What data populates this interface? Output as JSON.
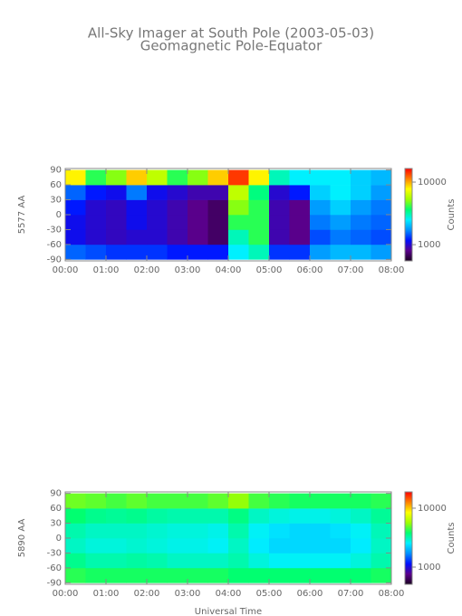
{
  "chart_data": [
    {
      "type": "heatmap",
      "title": "All-Sky Imager at South Pole (2003-05-03)",
      "subtitle": "Geomagnetic Pole-Equator",
      "ylabel": "5577 AA",
      "colorbar_label": "Counts",
      "xlim": [
        0,
        8
      ],
      "xticks": [
        {
          "value": 0,
          "label": "00:00"
        },
        {
          "value": 1,
          "label": "01:00"
        },
        {
          "value": 2,
          "label": "02:00"
        },
        {
          "value": 3,
          "label": "03:00"
        },
        {
          "value": 4,
          "label": "04:00"
        },
        {
          "value": 5,
          "label": "05:00"
        },
        {
          "value": 6,
          "label": "06:00"
        },
        {
          "value": 7,
          "label": "07:00"
        },
        {
          "value": 8,
          "label": "08:00"
        }
      ],
      "ylim": [
        -93,
        93
      ],
      "yticks": [
        90,
        60,
        30,
        0,
        -30,
        -60,
        -90
      ],
      "xbins": [
        0,
        0.5,
        1,
        1.5,
        2,
        2.5,
        3,
        3.5,
        4,
        4.5,
        5,
        5.5,
        6,
        6.5,
        7,
        7.5,
        8
      ],
      "ybins": [
        -90,
        -60,
        -30,
        0,
        30,
        60,
        90
      ],
      "values": [
        [
          1500,
          1400,
          1300,
          1300,
          1300,
          1200,
          1200,
          1200,
          2500,
          3000,
          1300,
          1300,
          1800,
          2000,
          2000,
          1800
        ],
        [
          1100,
          1000,
          950,
          1000,
          1000,
          900,
          800,
          700,
          3000,
          4000,
          900,
          800,
          1400,
          1600,
          1500,
          1400
        ],
        [
          1100,
          1000,
          950,
          1100,
          1000,
          900,
          800,
          700,
          4000,
          4000,
          900,
          800,
          1600,
          1800,
          1600,
          1500
        ],
        [
          1200,
          1000,
          950,
          1100,
          1000,
          900,
          800,
          700,
          5000,
          4000,
          900,
          800,
          1800,
          2200,
          1800,
          1600
        ],
        [
          1500,
          1200,
          1100,
          1600,
          1100,
          1000,
          900,
          900,
          6000,
          3500,
          1000,
          1200,
          2200,
          2500,
          2200,
          1800
        ],
        [
          8000,
          4000,
          5000,
          9000,
          6000,
          4000,
          5000,
          9000,
          14000,
          8000,
          3000,
          2500,
          2500,
          2500,
          2200,
          2000
        ]
      ],
      "clim": [
        550,
        16500
      ],
      "color_log": true,
      "cticks": [
        1000,
        10000
      ],
      "colormap": [
        "#1a0020",
        "#5a008c",
        "#0010ff",
        "#0090ff",
        "#00f0ff",
        "#00ff70",
        "#a0ff00",
        "#ffff00",
        "#ff8000",
        "#ff0000"
      ]
    },
    {
      "type": "heatmap",
      "ylabel": "5890 AA",
      "xlabel": "Universal Time",
      "colorbar_label": "Counts",
      "xlim": [
        0,
        8
      ],
      "xticks": [
        {
          "value": 0,
          "label": "00:00"
        },
        {
          "value": 1,
          "label": "01:00"
        },
        {
          "value": 2,
          "label": "02:00"
        },
        {
          "value": 3,
          "label": "03:00"
        },
        {
          "value": 4,
          "label": "04:00"
        },
        {
          "value": 5,
          "label": "05:00"
        },
        {
          "value": 6,
          "label": "06:00"
        },
        {
          "value": 7,
          "label": "07:00"
        },
        {
          "value": 8,
          "label": "08:00"
        }
      ],
      "ylim": [
        -93,
        93
      ],
      "yticks": [
        90,
        60,
        30,
        0,
        -30,
        -60,
        -90
      ],
      "xbins": [
        0,
        0.5,
        1,
        1.5,
        2,
        2.5,
        3,
        3.5,
        4,
        4.5,
        5,
        5.5,
        6,
        6.5,
        7,
        7.5,
        8
      ],
      "ybins": [
        -90,
        -60,
        -30,
        0,
        30,
        60,
        90
      ],
      "values": [
        [
          4200,
          4000,
          4000,
          4000,
          4000,
          4000,
          4000,
          4000,
          3800,
          3800,
          3800,
          3800,
          3800,
          3800,
          3800,
          4000
        ],
        [
          3500,
          3200,
          3200,
          3300,
          3200,
          3000,
          3000,
          3000,
          3200,
          2800,
          2600,
          2600,
          2600,
          2600,
          2800,
          3200
        ],
        [
          3000,
          2800,
          2800,
          2900,
          2800,
          2700,
          2700,
          2600,
          3000,
          2500,
          2300,
          2300,
          2300,
          2300,
          2500,
          3000
        ],
        [
          3200,
          3000,
          3000,
          3000,
          2900,
          2800,
          2800,
          2700,
          3200,
          2600,
          2400,
          2300,
          2300,
          2400,
          2600,
          3100
        ],
        [
          3800,
          3500,
          3400,
          3500,
          3300,
          3200,
          3200,
          3200,
          3600,
          3000,
          2800,
          2700,
          2700,
          2800,
          3000,
          3400
        ],
        [
          5000,
          4800,
          4500,
          4800,
          4500,
          4500,
          4500,
          4800,
          5500,
          4500,
          4200,
          4000,
          4000,
          4000,
          4000,
          4200
        ]
      ],
      "clim": [
        510,
        18900
      ],
      "color_log": true,
      "cticks": [
        1000,
        10000
      ],
      "colormap": [
        "#1a0020",
        "#5a008c",
        "#0010ff",
        "#0090ff",
        "#00f0ff",
        "#00ff70",
        "#a0ff00",
        "#ffff00",
        "#ff8000",
        "#ff0000"
      ]
    }
  ]
}
